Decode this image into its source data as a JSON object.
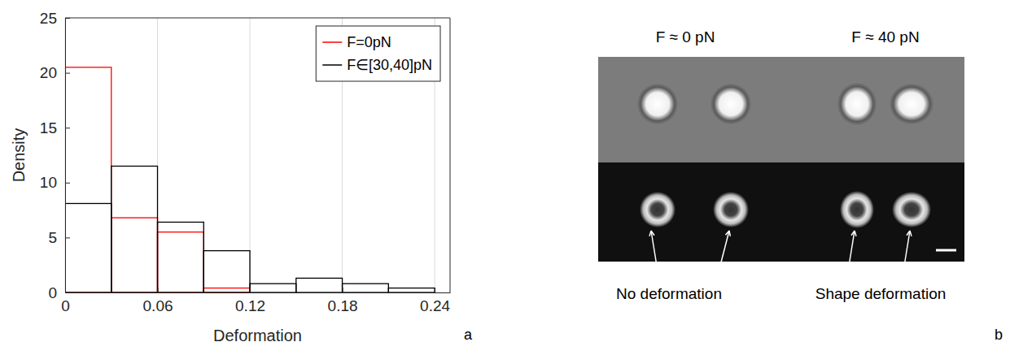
{
  "chart_data": {
    "type": "histogram",
    "panel_label": "a",
    "x_label": "Deformation",
    "y_label": "Density",
    "bins": [
      0,
      0.03,
      0.06,
      0.09,
      0.12,
      0.15,
      0.18,
      0.21,
      0.24
    ],
    "series": [
      {
        "name": "F=0pN",
        "color": "#ff0000",
        "values": [
          20.5,
          6.8,
          5.5,
          0.4,
          0,
          0,
          0,
          0
        ]
      },
      {
        "name": "F∈[30,40]pN",
        "color": "#000000",
        "values": [
          8.1,
          11.5,
          6.4,
          3.8,
          0.8,
          1.3,
          0.8,
          0.4
        ]
      }
    ],
    "xlim": [
      0,
      0.25
    ],
    "xticks": [
      0,
      0.06,
      0.12,
      0.18,
      0.24
    ],
    "ylim": [
      0,
      25
    ],
    "yticks": [
      0,
      5,
      10,
      15,
      20,
      25
    ],
    "grid": "x",
    "legend": "northeast"
  },
  "image_panel": {
    "panel_label": "b",
    "titles": [
      "F ≈ 0 pN",
      "F ≈ 40 pN"
    ],
    "annotations": [
      "No deformation",
      "Shape deformation"
    ]
  }
}
